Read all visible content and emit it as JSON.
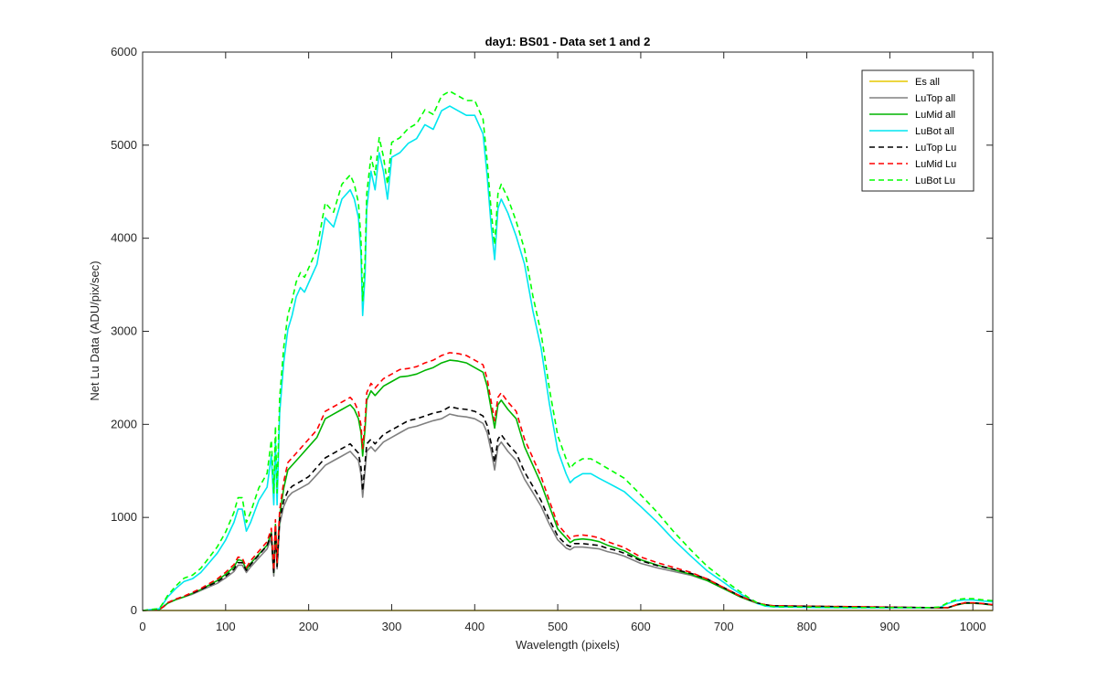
{
  "chart_data": {
    "type": "line",
    "title": "day1: BS01 - Data set 1 and 2",
    "xlabel": "Wavelength (pixels)",
    "ylabel": "Net Lu Data (ADU/pix/sec)",
    "xlim": [
      0,
      1024
    ],
    "ylim": [
      0,
      6000
    ],
    "x_ticks": [
      0,
      100,
      200,
      300,
      400,
      500,
      600,
      700,
      800,
      900,
      1000
    ],
    "y_ticks": [
      0,
      1000,
      2000,
      3000,
      4000,
      5000,
      6000
    ],
    "legend_position": "top-right",
    "grid": false,
    "profiles": {
      "LuBot": {
        "x": [
          0,
          20,
          25,
          30,
          40,
          50,
          60,
          70,
          80,
          90,
          100,
          110,
          115,
          120,
          125,
          130,
          140,
          150,
          155,
          158,
          160,
          162,
          165,
          170,
          175,
          180,
          185,
          190,
          195,
          200,
          210,
          220,
          230,
          240,
          250,
          255,
          260,
          263,
          265,
          268,
          270,
          275,
          280,
          285,
          290,
          295,
          300,
          310,
          320,
          330,
          340,
          350,
          360,
          370,
          380,
          390,
          400,
          410,
          415,
          420,
          424,
          428,
          432,
          440,
          450,
          460,
          470,
          480,
          490,
          500,
          510,
          515,
          520,
          530,
          540,
          550,
          560,
          570,
          580,
          600,
          620,
          640,
          660,
          680,
          700,
          710,
          720,
          730,
          740,
          750,
          760,
          800,
          850,
          900,
          950,
          960,
          970,
          980,
          990,
          1000,
          1010,
          1024
        ],
        "y": [
          0,
          20,
          80,
          150,
          250,
          330,
          360,
          430,
          540,
          650,
          800,
          1000,
          1150,
          1150,
          900,
          1000,
          1250,
          1400,
          1750,
          1200,
          1900,
          1200,
          2200,
          2750,
          3100,
          3250,
          3450,
          3550,
          3500,
          3600,
          3800,
          4300,
          4200,
          4500,
          4600,
          4500,
          4300,
          3900,
          3250,
          3700,
          4400,
          4800,
          4600,
          5000,
          4800,
          4500,
          4950,
          5000,
          5100,
          5150,
          5300,
          5250,
          5450,
          5500,
          5450,
          5400,
          5400,
          5200,
          4750,
          4200,
          3850,
          4400,
          4500,
          4350,
          4100,
          3800,
          3300,
          2900,
          2300,
          1800,
          1550,
          1450,
          1500,
          1550,
          1550,
          1500,
          1450,
          1400,
          1350,
          1180,
          1000,
          800,
          620,
          450,
          320,
          250,
          190,
          130,
          80,
          50,
          40,
          35,
          30,
          30,
          30,
          35,
          80,
          110,
          120,
          120,
          110,
          100
        ]
      },
      "LuMid": {
        "x": [
          0,
          20,
          25,
          30,
          40,
          50,
          60,
          70,
          80,
          90,
          100,
          110,
          115,
          120,
          125,
          130,
          140,
          150,
          155,
          158,
          160,
          162,
          165,
          170,
          175,
          180,
          190,
          200,
          210,
          220,
          230,
          240,
          250,
          255,
          260,
          263,
          265,
          268,
          270,
          275,
          280,
          290,
          300,
          310,
          320,
          330,
          340,
          350,
          360,
          370,
          380,
          390,
          400,
          410,
          415,
          420,
          424,
          428,
          432,
          440,
          450,
          460,
          470,
          480,
          490,
          500,
          510,
          515,
          520,
          530,
          540,
          550,
          560,
          570,
          580,
          600,
          620,
          640,
          660,
          680,
          700,
          720,
          740,
          750,
          760,
          800,
          850,
          900,
          950,
          960,
          970,
          980,
          990,
          1000,
          1010,
          1024
        ],
        "y": [
          0,
          10,
          40,
          80,
          120,
          150,
          190,
          230,
          280,
          330,
          400,
          480,
          560,
          550,
          450,
          520,
          620,
          720,
          860,
          420,
          950,
          500,
          1050,
          1350,
          1550,
          1600,
          1700,
          1800,
          1900,
          2100,
          2150,
          2200,
          2250,
          2200,
          2100,
          1950,
          1700,
          2000,
          2300,
          2400,
          2350,
          2450,
          2500,
          2550,
          2560,
          2580,
          2620,
          2650,
          2700,
          2730,
          2720,
          2700,
          2650,
          2600,
          2450,
          2200,
          2000,
          2250,
          2300,
          2200,
          2100,
          1800,
          1600,
          1400,
          1150,
          900,
          800,
          750,
          780,
          790,
          780,
          760,
          720,
          690,
          660,
          560,
          500,
          450,
          400,
          330,
          240,
          150,
          80,
          60,
          50,
          45,
          40,
          35,
          30,
          30,
          30,
          60,
          80,
          80,
          75,
          60
        ]
      },
      "LuTop": {
        "x": [
          0,
          20,
          25,
          30,
          40,
          50,
          60,
          70,
          80,
          90,
          100,
          110,
          115,
          120,
          125,
          130,
          140,
          150,
          155,
          158,
          160,
          162,
          165,
          170,
          175,
          180,
          190,
          200,
          210,
          220,
          230,
          240,
          250,
          255,
          260,
          263,
          265,
          268,
          270,
          275,
          280,
          290,
          300,
          310,
          320,
          330,
          340,
          350,
          360,
          370,
          380,
          390,
          400,
          410,
          415,
          420,
          424,
          428,
          432,
          440,
          450,
          460,
          470,
          480,
          490,
          500,
          510,
          515,
          520,
          530,
          540,
          550,
          560,
          570,
          580,
          600,
          620,
          640,
          660,
          680,
          700,
          720,
          740,
          750,
          760,
          800,
          850,
          900,
          950,
          960,
          970,
          980,
          990,
          1000,
          1010,
          1024
        ],
        "y": [
          0,
          10,
          40,
          80,
          120,
          150,
          180,
          220,
          260,
          300,
          360,
          430,
          500,
          500,
          420,
          480,
          580,
          680,
          800,
          380,
          870,
          460,
          950,
          1150,
          1250,
          1300,
          1350,
          1400,
          1500,
          1600,
          1650,
          1700,
          1750,
          1700,
          1650,
          1500,
          1250,
          1550,
          1750,
          1800,
          1750,
          1850,
          1900,
          1950,
          2000,
          2020,
          2050,
          2080,
          2100,
          2150,
          2130,
          2120,
          2100,
          2050,
          1950,
          1750,
          1550,
          1800,
          1850,
          1750,
          1650,
          1450,
          1300,
          1150,
          950,
          780,
          690,
          670,
          700,
          700,
          690,
          680,
          650,
          630,
          600,
          520,
          470,
          430,
          390,
          330,
          240,
          150,
          80,
          60,
          50,
          45,
          40,
          35,
          30,
          30,
          30,
          60,
          80,
          80,
          75,
          60
        ]
      }
    },
    "series": [
      {
        "name": "Es  all",
        "profile": "Es",
        "style": "solid",
        "color": "#e6c800",
        "offset": 0
      },
      {
        "name": "LuTop  all",
        "profile": "LuTop",
        "style": "solid",
        "color": "#808080",
        "offset": -40
      },
      {
        "name": "LuMid  all",
        "profile": "LuMid",
        "style": "solid",
        "color": "#00b400",
        "offset": -40
      },
      {
        "name": "LuBot  all",
        "profile": "LuBot",
        "style": "solid",
        "color": "#00e6f0",
        "offset": -80
      },
      {
        "name": "LuTop  Lu",
        "profile": "LuTop",
        "style": "dashed",
        "color": "#000000",
        "offset": 40
      },
      {
        "name": "LuMid  Lu",
        "profile": "LuMid",
        "style": "dashed",
        "color": "#ff0000",
        "offset": 40
      },
      {
        "name": "LuBot  Lu",
        "profile": "LuBot",
        "style": "dashed",
        "color": "#00ff00",
        "offset": 80
      }
    ]
  }
}
